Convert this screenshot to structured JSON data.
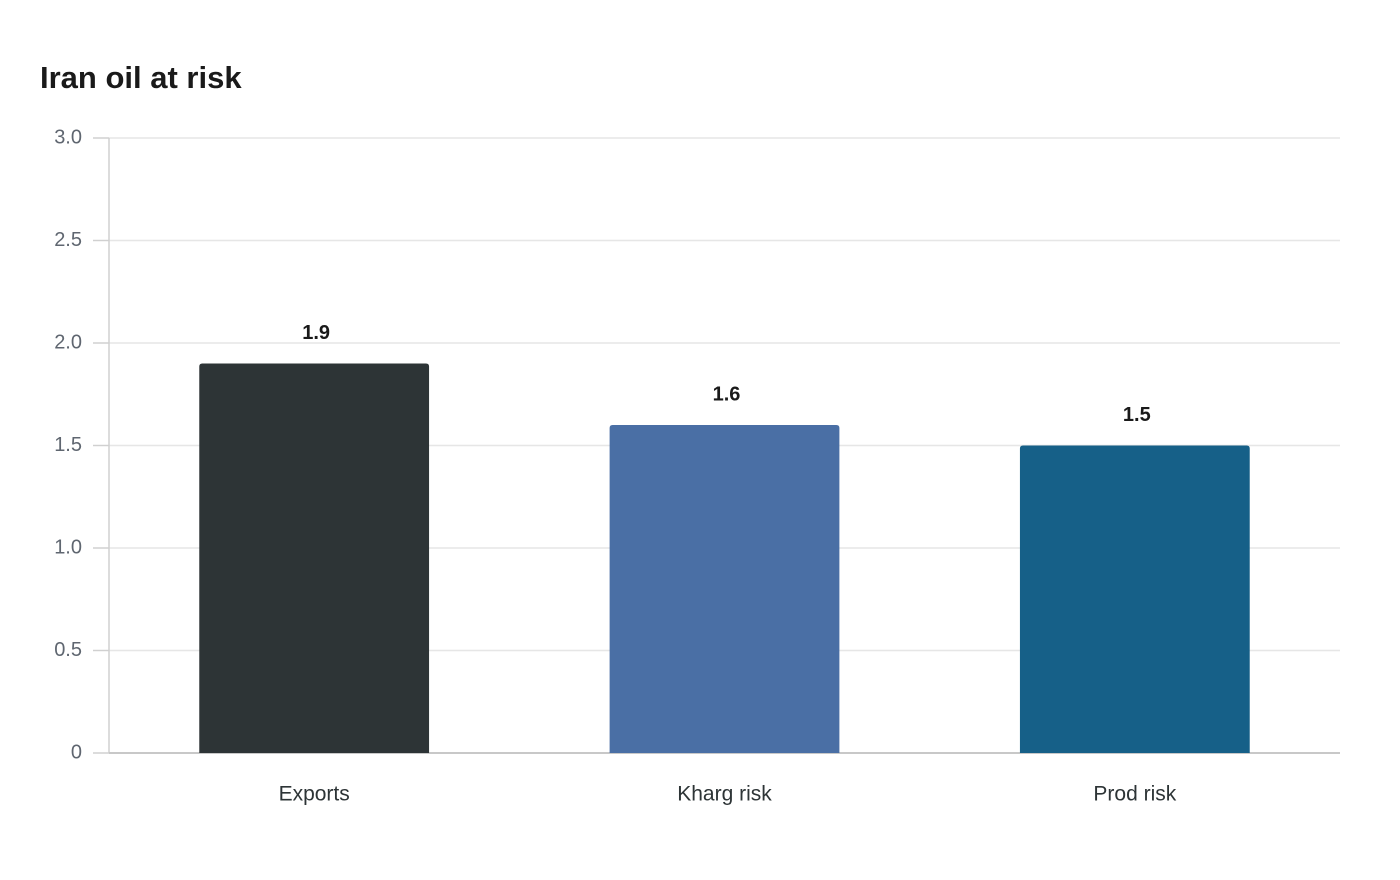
{
  "chart_data": {
    "type": "bar",
    "title": "Iran oil at risk",
    "categories": [
      "Exports",
      "Kharg risk",
      "Prod risk"
    ],
    "values": [
      1.9,
      1.6,
      1.5
    ],
    "colors": [
      "#2d3436",
      "#4a6fa5",
      "#166088"
    ],
    "ylim": [
      0,
      3
    ],
    "yticks": [
      0,
      0.5,
      {
        "value": 1,
        "label": "1.0"
      },
      1.5,
      {
        "value": 2,
        "label": "2.0"
      },
      2.5,
      {
        "value": 3,
        "label": "3.0"
      }
    ],
    "grid": true
  }
}
